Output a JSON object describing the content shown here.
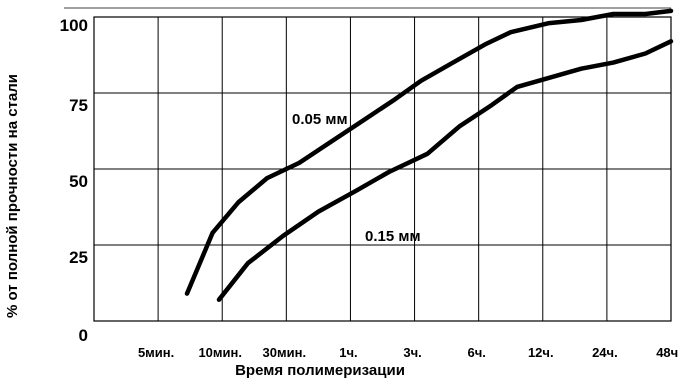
{
  "chart_data": {
    "type": "line",
    "xlabel": "Время полимеризации",
    "ylabel": "% от полной прочности на стали",
    "categories": [
      "5мин.",
      "10мин.",
      "30мин.",
      "1ч.",
      "3ч.",
      "6ч.",
      "12ч.",
      "24ч.",
      "48ч."
    ],
    "yticks": [
      0,
      25,
      50,
      75,
      100
    ],
    "ylim": [
      0,
      100
    ],
    "grid": true,
    "series": [
      {
        "name": "0.05 мм",
        "x": [
          0.45,
          0.85,
          1.25,
          1.7,
          2.2,
          2.7,
          3.2,
          3.7,
          4.1,
          4.6,
          5.1,
          5.5,
          6.1,
          6.6,
          7.1,
          7.6,
          8.0
        ],
        "y": [
          9,
          29,
          39,
          47,
          52,
          59,
          66,
          73,
          79,
          85,
          91,
          95,
          98,
          99,
          101,
          101,
          102
        ]
      },
      {
        "name": "0.15 мм",
        "x": [
          0.95,
          1.4,
          1.95,
          2.5,
          3.1,
          3.6,
          4.2,
          4.7,
          5.2,
          5.6,
          6.1,
          6.6,
          7.1,
          7.6,
          8.0
        ],
        "y": [
          7,
          19,
          28,
          36,
          43,
          49,
          55,
          64,
          71,
          77,
          80,
          83,
          85,
          88,
          92
        ]
      }
    ],
    "annotations": [
      {
        "text": "0.05 мм",
        "series": 0
      },
      {
        "text": "0.15 мм",
        "series": 1
      }
    ]
  }
}
